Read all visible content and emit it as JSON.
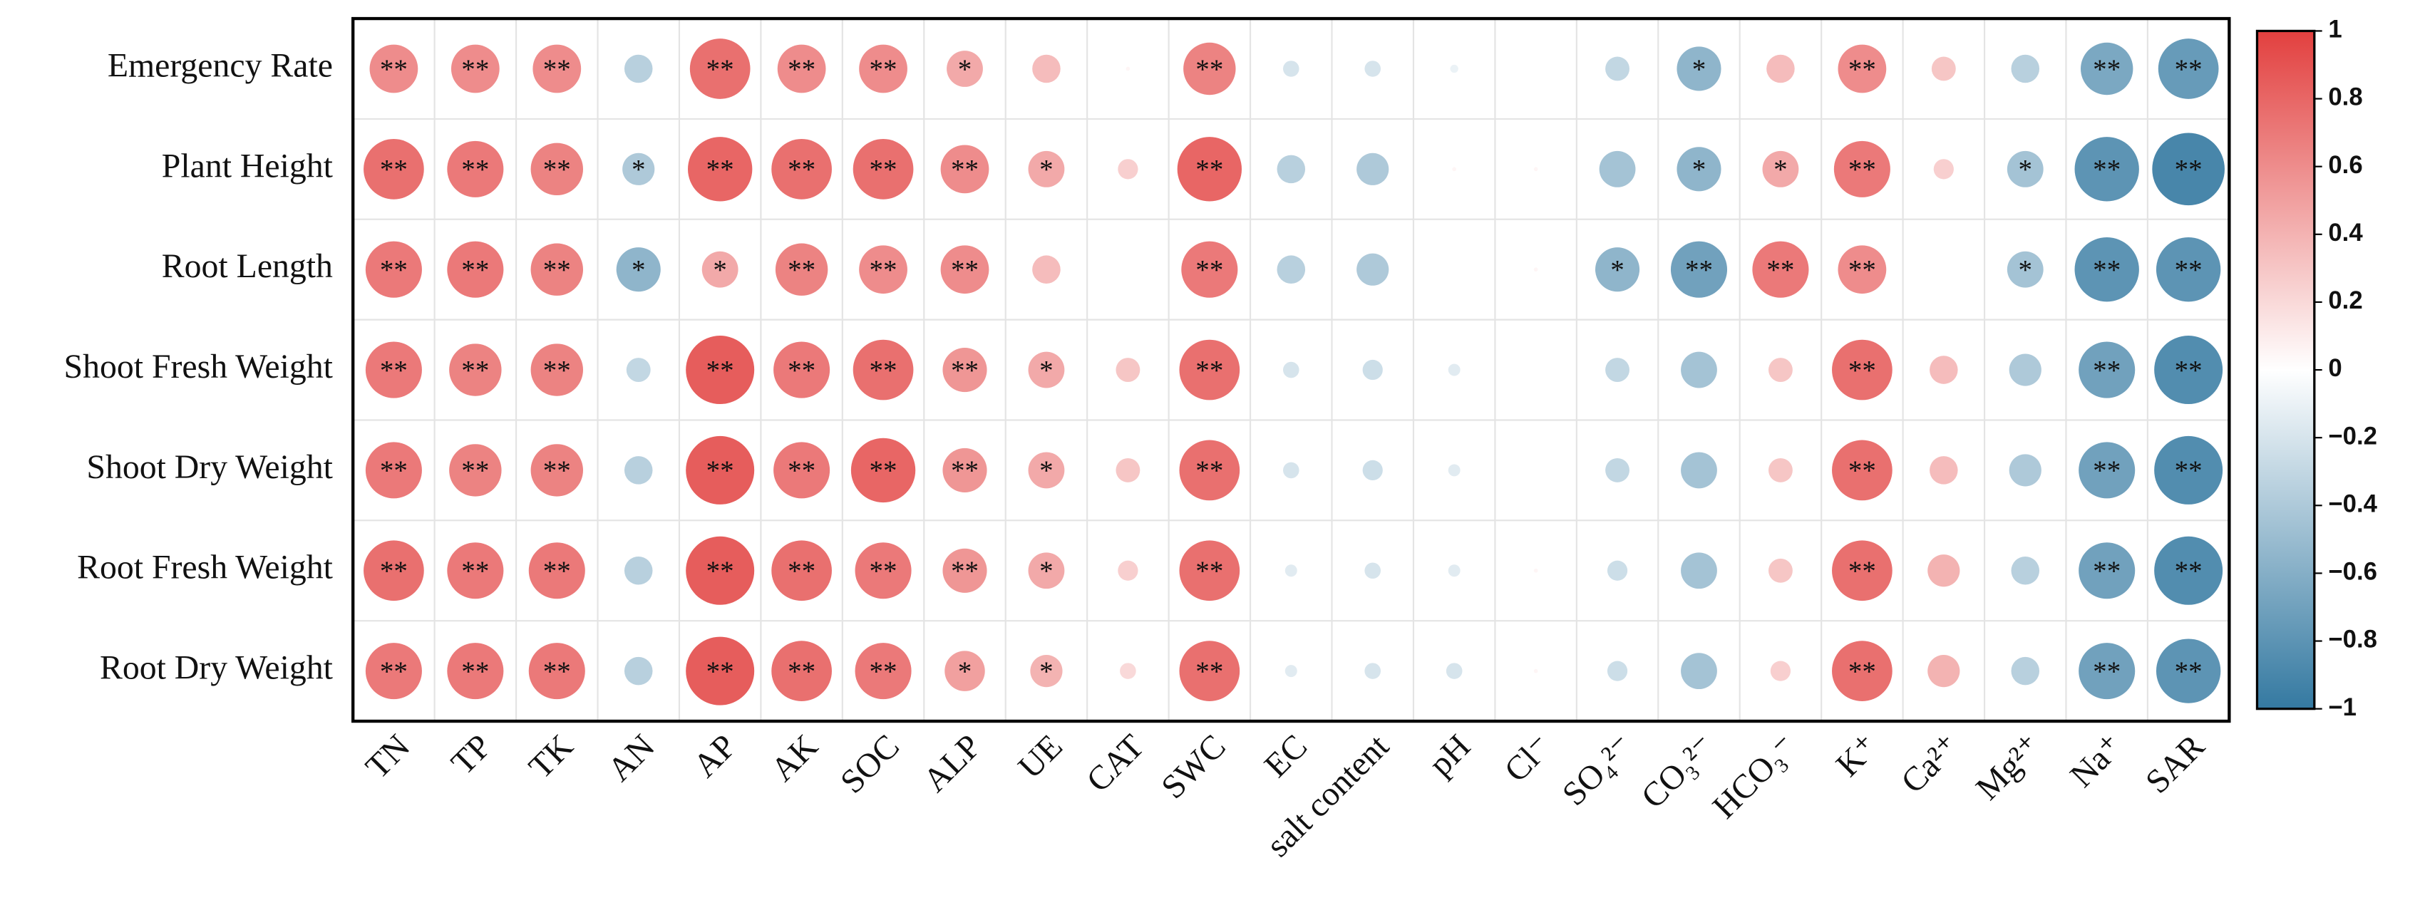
{
  "chart_data": {
    "type": "heatmap",
    "rows": [
      "Emergency Rate",
      "Plant Height",
      "Root Length",
      "Shoot Fresh Weight",
      "Shoot Dry Weight",
      "Root Fresh Weight",
      "Root Dry Weight"
    ],
    "columns": [
      "TN",
      "TP",
      "TK",
      "AN",
      "AP",
      "AK",
      "SOC",
      "ALP",
      "UE",
      "CAT",
      "SWC",
      "EC",
      "salt content",
      "pH",
      "Cl⁻",
      "SO₄²⁻",
      "CO₃²⁻",
      "HCO₃⁻",
      "K⁺",
      "Ca²⁺",
      "Mg²⁺",
      "Na⁺",
      "SAR"
    ],
    "values": [
      [
        0.6,
        0.6,
        0.6,
        -0.35,
        0.75,
        0.6,
        0.6,
        0.45,
        0.35,
        0.05,
        0.65,
        -0.2,
        -0.2,
        -0.1,
        0,
        -0.3,
        -0.55,
        0.35,
        0.6,
        0.3,
        -0.35,
        -0.65,
        -0.75
      ],
      [
        0.75,
        0.7,
        0.65,
        -0.4,
        0.8,
        0.75,
        0.75,
        0.6,
        0.45,
        0.25,
        0.8,
        -0.35,
        -0.4,
        0.05,
        0.05,
        -0.45,
        -0.55,
        0.45,
        0.7,
        0.25,
        -0.45,
        -0.8,
        -0.9
      ],
      [
        0.7,
        0.7,
        0.65,
        -0.55,
        0.45,
        0.65,
        0.6,
        0.6,
        0.35,
        0,
        0.7,
        -0.35,
        -0.4,
        0,
        0.05,
        -0.55,
        -0.7,
        0.7,
        0.6,
        0,
        -0.45,
        -0.8,
        -0.8
      ],
      [
        0.7,
        0.65,
        0.65,
        -0.3,
        0.85,
        0.7,
        0.75,
        0.55,
        0.45,
        0.3,
        0.75,
        -0.2,
        -0.25,
        -0.15,
        0,
        -0.3,
        -0.45,
        0.3,
        0.75,
        0.35,
        -0.4,
        -0.7,
        -0.85
      ],
      [
        0.7,
        0.65,
        0.65,
        -0.35,
        0.85,
        0.7,
        0.8,
        0.55,
        0.45,
        0.3,
        0.75,
        -0.2,
        -0.25,
        -0.15,
        0,
        -0.3,
        -0.45,
        0.3,
        0.75,
        0.35,
        -0.4,
        -0.7,
        -0.85
      ],
      [
        0.75,
        0.7,
        0.7,
        -0.35,
        0.85,
        0.75,
        0.7,
        0.55,
        0.45,
        0.25,
        0.75,
        -0.15,
        -0.2,
        -0.15,
        0.05,
        -0.25,
        -0.45,
        0.3,
        0.75,
        0.4,
        -0.35,
        -0.7,
        -0.85
      ],
      [
        0.7,
        0.7,
        0.7,
        -0.35,
        0.85,
        0.75,
        0.7,
        0.5,
        0.4,
        0.2,
        0.75,
        -0.15,
        -0.2,
        -0.2,
        0.05,
        -0.25,
        -0.45,
        0.25,
        0.75,
        0.4,
        -0.35,
        -0.7,
        -0.8
      ]
    ],
    "significance": [
      [
        "**",
        "**",
        "**",
        null,
        "**",
        "**",
        "**",
        "*",
        null,
        null,
        "**",
        null,
        null,
        null,
        null,
        null,
        "*",
        null,
        "**",
        null,
        null,
        "**",
        "**"
      ],
      [
        "**",
        "**",
        "**",
        "*",
        "**",
        "**",
        "**",
        "**",
        "*",
        null,
        "**",
        null,
        null,
        null,
        null,
        null,
        "*",
        "*",
        "**",
        null,
        "*",
        "**",
        "**"
      ],
      [
        "**",
        "**",
        "**",
        "*",
        "*",
        "**",
        "**",
        "**",
        null,
        null,
        "**",
        null,
        null,
        null,
        null,
        "*",
        "**",
        "**",
        "**",
        null,
        "*",
        "**",
        "**"
      ],
      [
        "**",
        "**",
        "**",
        null,
        "**",
        "**",
        "**",
        "**",
        "*",
        null,
        "**",
        null,
        null,
        null,
        null,
        null,
        null,
        null,
        "**",
        null,
        null,
        "**",
        "**"
      ],
      [
        "**",
        "**",
        "**",
        null,
        "**",
        "**",
        "**",
        "**",
        "*",
        null,
        "**",
        null,
        null,
        null,
        null,
        null,
        null,
        null,
        "**",
        null,
        null,
        "**",
        "**"
      ],
      [
        "**",
        "**",
        "**",
        null,
        "**",
        "**",
        "**",
        "**",
        "*",
        null,
        "**",
        null,
        null,
        null,
        null,
        null,
        null,
        null,
        "**",
        null,
        null,
        "**",
        "**"
      ],
      [
        "**",
        "**",
        "**",
        null,
        "**",
        "**",
        "**",
        "*",
        "*",
        null,
        "**",
        null,
        null,
        null,
        null,
        null,
        null,
        null,
        "**",
        null,
        null,
        "**",
        "**"
      ]
    ],
    "colormap": [
      "#3479a1",
      "#ffffff",
      "#e2403f"
    ],
    "clim": [
      -1,
      1
    ],
    "cticks": [
      1,
      0.8,
      0.6,
      0.4,
      0.2,
      0,
      {
        "value": -0.2,
        "label": "−0.2"
      },
      {
        "value": -0.4,
        "label": "−0.4"
      },
      {
        "value": -0.6,
        "label": "−0.6"
      },
      {
        "value": -0.8,
        "label": "−0.8"
      },
      {
        "value": -1,
        "label": "−1"
      }
    ]
  }
}
